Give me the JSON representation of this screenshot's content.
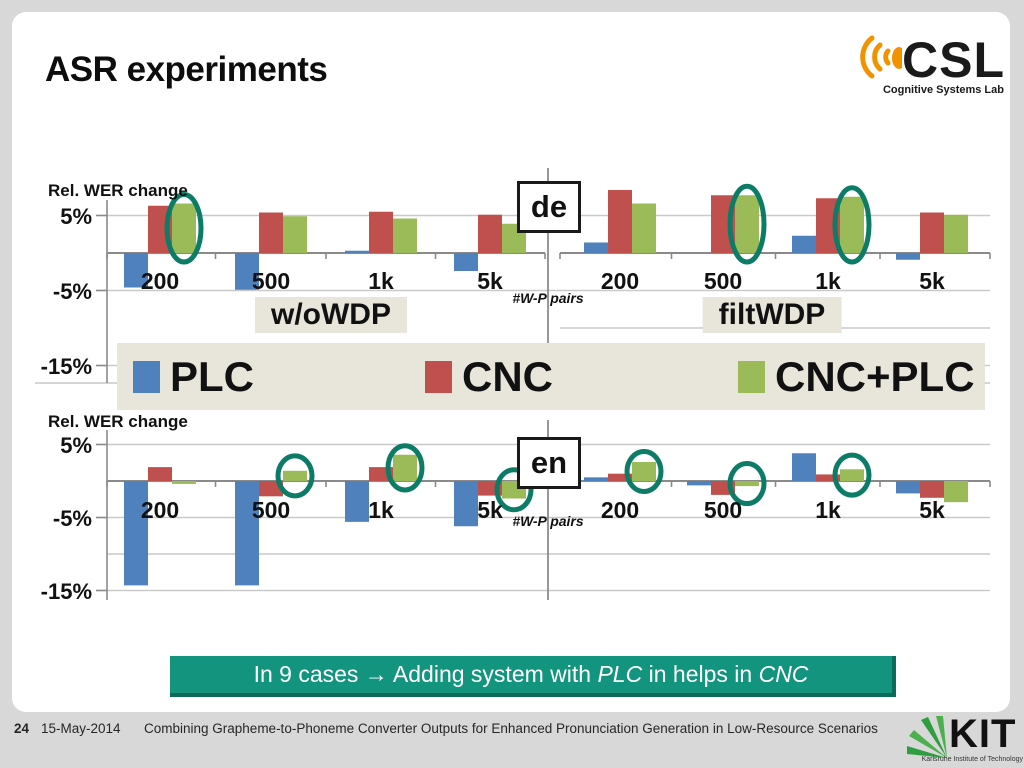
{
  "slide": {
    "title": "ASR experiments"
  },
  "csl_logo": {
    "text": "CSL",
    "subtitle": "Cognitive Systems Lab"
  },
  "legend": {
    "items": [
      {
        "label": "PLC",
        "color": "#4f81bd"
      },
      {
        "label": "CNC",
        "color": "#c0504d"
      },
      {
        "label": "CNC+PLC",
        "color": "#9bbb59"
      }
    ]
  },
  "colors": {
    "bar_blue": "#4f81bd",
    "bar_red": "#c0504d",
    "bar_green": "#9bbb59",
    "highlight_teal": "#0d7c66",
    "banner_teal": "#13947f",
    "grid_gray": "#c9c9c9",
    "axis_gray": "#8a8a8a"
  },
  "chart_data": [
    {
      "type": "bar",
      "panel_label": "de",
      "ylabel": "Rel. WER change",
      "xlabel": "#W-P pairs",
      "ytick_labels": [
        "5%",
        "-5%",
        "-15%"
      ],
      "ytick_values": [
        5,
        -5,
        -15
      ],
      "ylim": [
        -17,
        10
      ],
      "sections": [
        {
          "label": "w/oWDP",
          "categories": [
            "200",
            "500",
            "1k",
            "5k"
          ],
          "series": [
            {
              "name": "PLC",
              "values": [
                -4.6,
                -4.9,
                0.3,
                -2.4
              ]
            },
            {
              "name": "CNC",
              "values": [
                6.3,
                5.4,
                5.5,
                5.1
              ]
            },
            {
              "name": "CNC+PLC",
              "values": [
                6.6,
                4.9,
                4.6,
                3.9
              ]
            }
          ],
          "circled": [
            true,
            false,
            false,
            false
          ]
        },
        {
          "label": "filtWDP",
          "categories": [
            "200",
            "500",
            "1k",
            "5k"
          ],
          "series": [
            {
              "name": "PLC",
              "values": [
                1.4,
                0,
                2.3,
                -0.9
              ]
            },
            {
              "name": "CNC",
              "values": [
                8.4,
                7.7,
                7.3,
                5.4
              ]
            },
            {
              "name": "CNC+PLC",
              "values": [
                6.6,
                7.7,
                7.5,
                5.1
              ]
            }
          ],
          "circled": [
            false,
            true,
            true,
            false
          ]
        }
      ]
    },
    {
      "type": "bar",
      "panel_label": "en",
      "ylabel": "Rel. WER change",
      "xlabel": "#W-P pairs",
      "ytick_labels": [
        "5%",
        "-5%",
        "-15%"
      ],
      "ytick_values": [
        5,
        -5,
        -15
      ],
      "ylim": [
        -17,
        6
      ],
      "sections": [
        {
          "label": "",
          "categories": [
            "200",
            "500",
            "1k",
            "5k"
          ],
          "series": [
            {
              "name": "PLC",
              "values": [
                -14.3,
                -14.3,
                -5.6,
                -6.2
              ]
            },
            {
              "name": "CNC",
              "values": [
                1.9,
                -2.1,
                1.9,
                -2.0
              ]
            },
            {
              "name": "CNC+PLC",
              "values": [
                -0.4,
                1.4,
                3.6,
                -2.4
              ]
            }
          ],
          "circled": [
            false,
            true,
            true,
            true
          ]
        },
        {
          "label": "",
          "categories": [
            "200",
            "500",
            "1k",
            "5k"
          ],
          "series": [
            {
              "name": "PLC",
              "values": [
                0.5,
                -0.6,
                3.8,
                -1.7
              ]
            },
            {
              "name": "CNC",
              "values": [
                1.0,
                -1.9,
                0.9,
                -2.3
              ]
            },
            {
              "name": "CNC+PLC",
              "values": [
                2.6,
                -0.7,
                1.6,
                -2.9
              ]
            }
          ],
          "circled": [
            true,
            true,
            true,
            false
          ]
        }
      ]
    }
  ],
  "banner": {
    "prefix": "In 9 cases → Adding system with ",
    "italic1": "PLC",
    "middle": " in helps in ",
    "italic2": "CNC"
  },
  "footer": {
    "page": "24",
    "date": "15-May-2014",
    "text": "Combining Grapheme-to-Phoneme Converter Outputs for Enhanced Pronunciation Generation in Low-Resource Scenarios",
    "kit": {
      "text": "KIT",
      "subtitle": "Karlsruhe Institute of Technology"
    }
  }
}
